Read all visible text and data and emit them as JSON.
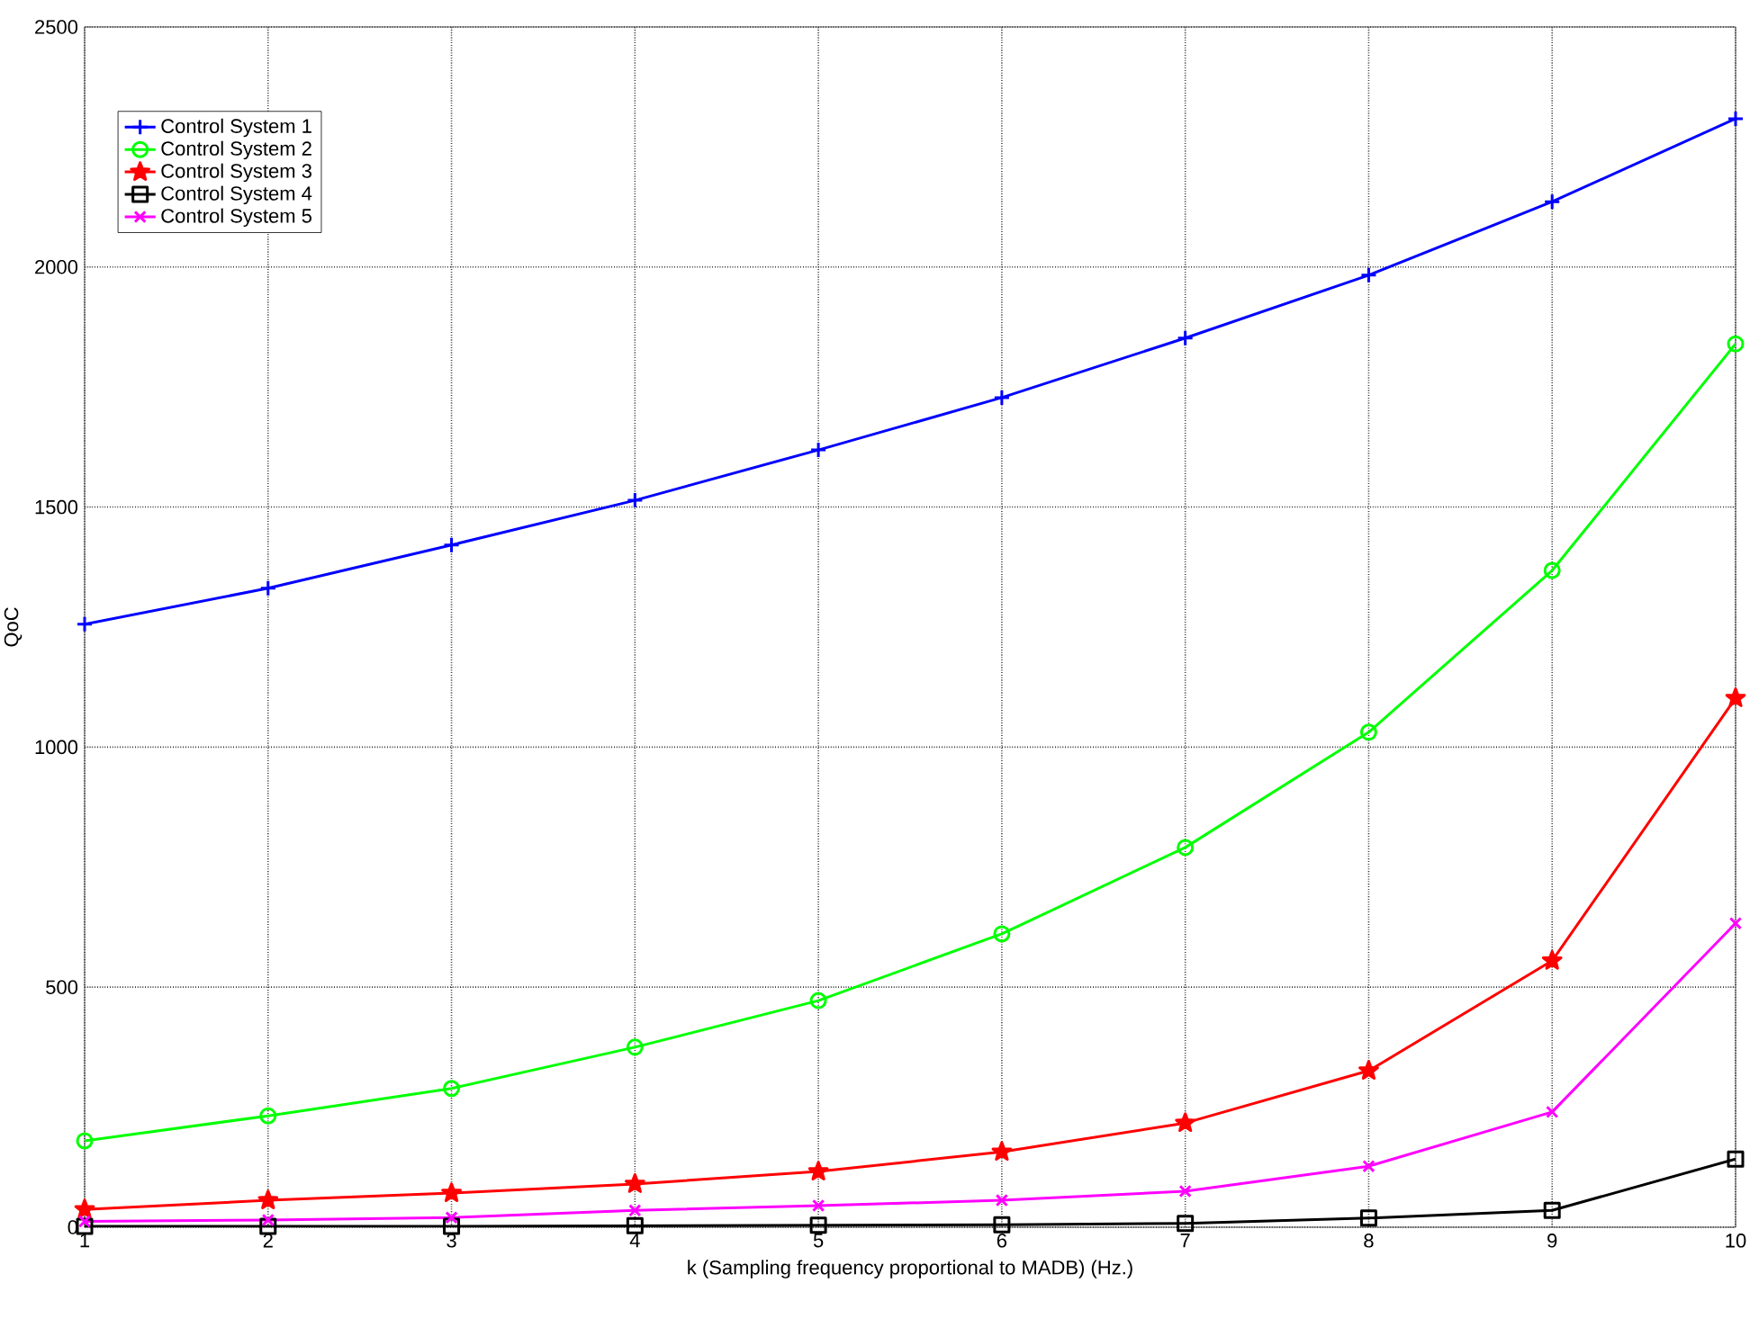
{
  "chart_data": {
    "type": "line",
    "xlabel": "k (Sampling frequency proportional to MADB) (Hz.)",
    "ylabel": "QoC",
    "x": [
      1,
      2,
      3,
      4,
      5,
      6,
      7,
      8,
      9,
      10
    ],
    "xlim": [
      1,
      10
    ],
    "xticks": [
      1,
      2,
      3,
      4,
      5,
      6,
      7,
      8,
      9,
      10
    ],
    "ylim": [
      0,
      2500
    ],
    "yticks": [
      0,
      500,
      1000,
      1500,
      2000,
      2500
    ],
    "grid": true,
    "legend": "top left",
    "line_style": "solid",
    "series": [
      {
        "name": "Control System 1",
        "color": "#0000ff",
        "marker": "cross",
        "values": [
          1256,
          1331,
          1421,
          1514,
          1619,
          1728,
          1852,
          1983,
          2136,
          2309
        ]
      },
      {
        "name": "Control System 2",
        "color": "#00ff00",
        "marker": "circle",
        "values": [
          180,
          232,
          289,
          375,
          472,
          611,
          791,
          1031,
          1368,
          1840
        ]
      },
      {
        "name": "Control System 3",
        "color": "#ff0000",
        "marker": "star",
        "values": [
          37,
          56,
          71,
          90,
          116,
          157,
          217,
          326,
          555,
          1102
        ]
      },
      {
        "name": "Control System 4",
        "color": "#000000",
        "marker": "square",
        "values": [
          2,
          2,
          2,
          3,
          4,
          5,
          8,
          19,
          35,
          142
        ]
      },
      {
        "name": "Control System 5",
        "color": "#ff00ff",
        "marker": "x",
        "values": [
          12,
          15,
          20,
          35,
          45,
          56,
          75,
          127,
          240,
          633
        ]
      }
    ]
  }
}
